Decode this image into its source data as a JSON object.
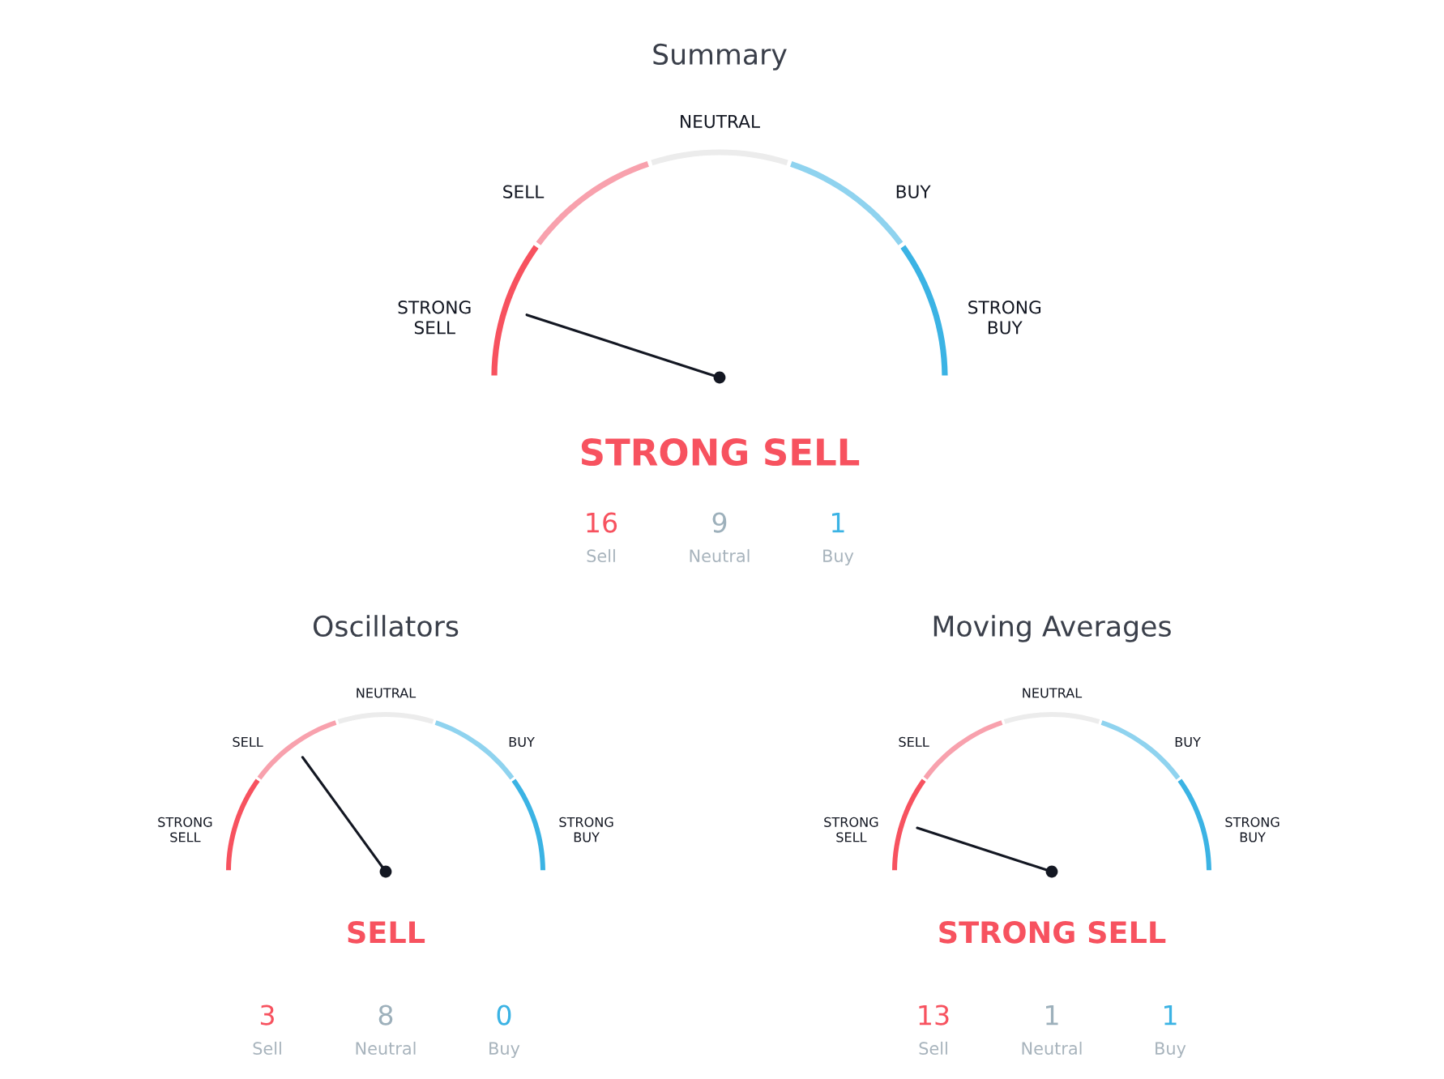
{
  "chart_data": [
    {
      "type": "donut",
      "title": "Summary",
      "categories": [
        "STRONG\nSELL",
        "SELL",
        "NEUTRAL",
        "BUY",
        "STRONG\nBUY"
      ],
      "values": [
        20,
        20,
        20,
        20,
        20
      ],
      "colors": [
        "#f7525f",
        "#f8a1ad",
        "#ececec",
        "#8fd3ef",
        "#3bb3e4"
      ],
      "needle": "STRONG\nSELL",
      "annotations": [
        "STRONG SELL",
        "16",
        "Sell",
        "9",
        "Neutral",
        "1",
        "Buy"
      ]
    },
    {
      "type": "donut",
      "title": "Oscillators",
      "categories": [
        "STRONG\nSELL",
        "SELL",
        "NEUTRAL",
        "BUY",
        "STRONG\nBUY"
      ],
      "values": [
        20,
        20,
        20,
        20,
        20
      ],
      "colors": [
        "#f7525f",
        "#f8a1ad",
        "#ececec",
        "#8fd3ef",
        "#3bb3e4"
      ],
      "needle": "SELL",
      "annotations": [
        "SELL",
        "3",
        "Sell",
        "8",
        "Neutral",
        "0",
        "Buy"
      ]
    },
    {
      "type": "donut",
      "title": "Moving Averages",
      "categories": [
        "STRONG\nSELL",
        "SELL",
        "NEUTRAL",
        "BUY",
        "STRONG\nBUY"
      ],
      "values": [
        20,
        20,
        20,
        20,
        20
      ],
      "colors": [
        "#f7525f",
        "#f8a1ad",
        "#ececec",
        "#8fd3ef",
        "#3bb3e4"
      ],
      "needle": "STRONG\nSELL",
      "annotations": [
        "STRONG SELL",
        "13",
        "Sell",
        "1",
        "Neutral",
        "1",
        "Buy"
      ]
    }
  ]
}
